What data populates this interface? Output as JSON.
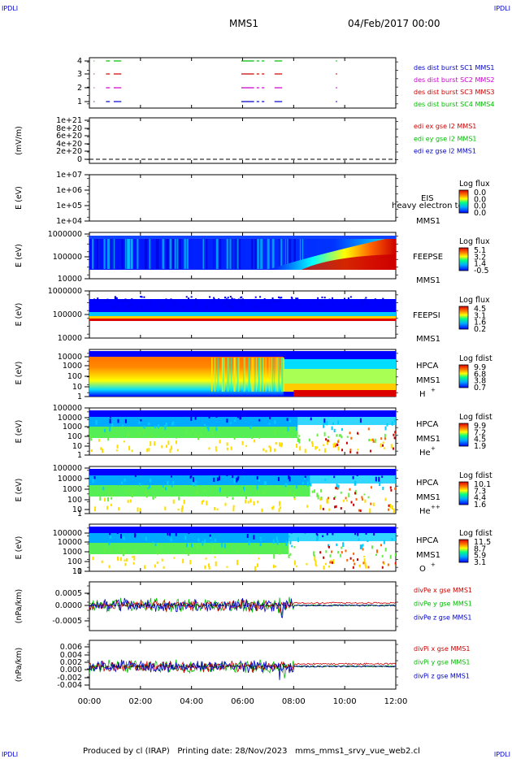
{
  "header": {
    "ipdl_label": "IPDLI",
    "mission": "MMS1",
    "date_time": "04/Feb/2017 00:00"
  },
  "footer": {
    "text": "Produced by cl (IRAP)   Printing date: 28/Nov/2023   mms_mms1_srvy_vue_web2.cl"
  },
  "chart_data": [
    {
      "id": "burst",
      "type": "scatter",
      "ylim": [
        0.5,
        4.5
      ],
      "ytick_labels": [
        "1",
        "2",
        "3",
        "4"
      ],
      "legend": [
        {
          "label": "des dist burst SC1 MMS1",
          "color": "#0000cc"
        },
        {
          "label": "des dist burst SC2 MMS2",
          "color": "#cc00cc"
        },
        {
          "label": "des dist burst SC3 MMS3",
          "color": "#cc0000"
        },
        {
          "label": "des dist burst SC4 MMS4",
          "color": "#00bb00"
        }
      ],
      "segments_hours": [
        [
          0.17,
          0.2
        ],
        [
          0.65,
          0.8
        ],
        [
          0.95,
          1.25
        ],
        [
          5.95,
          6.45
        ],
        [
          6.55,
          6.65
        ],
        [
          6.75,
          6.85
        ],
        [
          7.25,
          7.55
        ],
        [
          9.65,
          9.7
        ]
      ]
    },
    {
      "id": "edi",
      "type": "line",
      "ylabel": "(mV/m)",
      "ytick_labels": [
        "1e+21",
        "8e+20",
        "6e+20",
        "4e+20",
        "2e+20",
        "0"
      ],
      "legend": [
        {
          "label": "edi ex gse l2 MMS1",
          "color": "#cc0000"
        },
        {
          "label": "edi ey gse l2 MMS1",
          "color": "#00bb00"
        },
        {
          "label": "edi ez gse l2 MMS1",
          "color": "#0000cc"
        }
      ]
    },
    {
      "id": "eis",
      "type": "heatmap",
      "ylabel": "E (eV)",
      "ytick_labels": [
        "1e+07",
        "1e+06",
        "1e+05",
        "1e+04"
      ],
      "labels": [
        "EIS",
        "heavy electron to",
        "MMS1"
      ],
      "colorbar": {
        "title": "Log flux",
        "ticks": [
          "0.0",
          "0.0",
          "0.0",
          "0.0"
        ]
      }
    },
    {
      "id": "feepse",
      "type": "heatmap",
      "ylabel": "E (eV)",
      "ytick_labels": [
        "1000000",
        "100000",
        "10000"
      ],
      "labels": [
        "FEEPSE",
        "MMS1"
      ],
      "colorbar": {
        "title": "Log flux",
        "ticks": [
          "5.1",
          "3.2",
          "1.4",
          "-0.5"
        ]
      }
    },
    {
      "id": "feepsi",
      "type": "heatmap",
      "ylabel": "E (eV)",
      "ytick_labels": [
        "1000000",
        "100000",
        "10000"
      ],
      "labels": [
        "FEEPSI",
        "MMS1"
      ],
      "colorbar": {
        "title": "Log flux",
        "ticks": [
          "4.5",
          "3.1",
          "1.6",
          "0.2"
        ]
      }
    },
    {
      "id": "hpca_h",
      "type": "heatmap",
      "ylabel": "E (eV)",
      "ytick_labels": [
        "10000",
        "1000",
        "100",
        "10",
        "1"
      ],
      "labels": [
        "HPCA",
        "MMS1",
        "H",
        "+"
      ],
      "colorbar": {
        "title": "Log fdist",
        "ticks": [
          "9.9",
          "6.8",
          "3.8",
          "0.7"
        ]
      }
    },
    {
      "id": "hpca_he",
      "type": "heatmap",
      "ylabel": "E (eV)",
      "ytick_labels": [
        "100000",
        "10000",
        "1000",
        "100",
        "10",
        "1"
      ],
      "labels": [
        "HPCA",
        "MMS1",
        "He",
        "+"
      ],
      "colorbar": {
        "title": "Log fdist",
        "ticks": [
          "9.9",
          "7.2",
          "4.5",
          "1.9"
        ]
      }
    },
    {
      "id": "hpca_hepp",
      "type": "heatmap",
      "ylabel": "E (eV)",
      "ytick_labels": [
        "100000",
        "10000",
        "1000",
        "100",
        "10",
        "1"
      ],
      "labels": [
        "HPCA",
        "MMS1",
        "He",
        "++"
      ],
      "colorbar": {
        "title": "Log fdist",
        "ticks": [
          "10.1",
          "7.3",
          "4.4",
          "1.6"
        ]
      }
    },
    {
      "id": "hpca_o",
      "type": "heatmap",
      "ylabel": "E (eV)",
      "ytick_labels": [
        "100000",
        "10000",
        "1000",
        "100",
        "10",
        "1"
      ],
      "labels": [
        "HPCA",
        "MMS1",
        "O",
        "+"
      ],
      "colorbar": {
        "title": "Log fdist",
        "ticks": [
          "11.5",
          "8.7",
          "5.9",
          "3.1"
        ]
      }
    },
    {
      "id": "divpe",
      "type": "line",
      "ylabel": "(nPa/km)",
      "ytick_labels": [
        "0.0005",
        "0.0000",
        "-0.0005"
      ],
      "ylim": [
        -0.0008,
        0.0009
      ],
      "legend": [
        {
          "label": "divPe x gse MMS1",
          "color": "#cc0000"
        },
        {
          "label": "divPe y gse MMS1",
          "color": "#00bb00"
        },
        {
          "label": "divPe z gse MMS1",
          "color": "#0000cc"
        }
      ]
    },
    {
      "id": "divpi",
      "type": "line",
      "ylabel": "(nPa/km)",
      "ytick_labels": [
        "0.006",
        "0.004",
        "0.002",
        "0.000",
        "-0.002",
        "-0.004"
      ],
      "ylim": [
        -0.0055,
        0.007
      ],
      "legend": [
        {
          "label": "divPi x gse MMS1",
          "color": "#cc0000"
        },
        {
          "label": "divPi y gse MMS1",
          "color": "#00bb00"
        },
        {
          "label": "divPi z gse MMS1",
          "color": "#0000cc"
        }
      ]
    }
  ],
  "time_axis": {
    "range_hours": [
      0,
      12
    ],
    "tick_labels": [
      "00:00",
      "02:00",
      "04:00",
      "06:00",
      "08:00",
      "10:00",
      "12:00"
    ]
  }
}
